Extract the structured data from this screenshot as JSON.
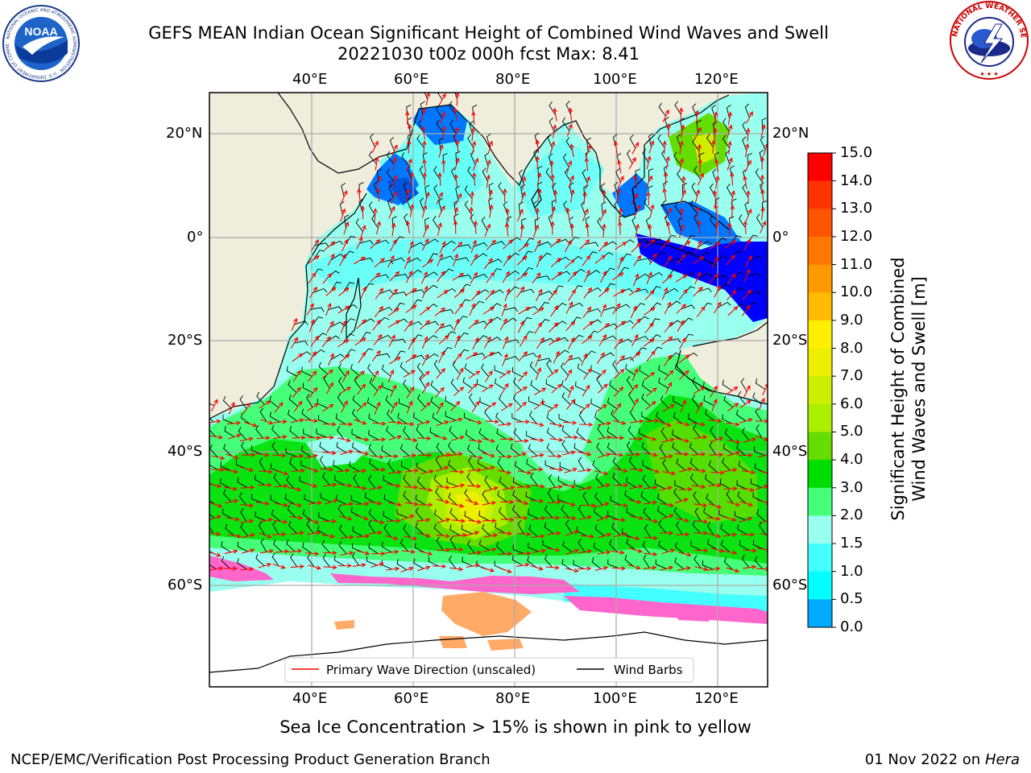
{
  "header": {
    "title_line1": "GEFS MEAN Indian Ocean Significant Height of Combined Wind Waves and Swell",
    "title_line2": "20221030 t00z 000h fcst   Max: 8.41"
  },
  "logos": {
    "noaa_text": "NOAA",
    "noaa_ring_text": "NATIONAL OCEANIC AND ATMOSPHERIC ADMINISTRATION · U.S. DEPARTMENT OF COMMERCE",
    "nws_ring_text": "NATIONAL WEATHER SERVICE"
  },
  "map": {
    "lon_ticks": [
      "40°E",
      "60°E",
      "80°E",
      "100°E",
      "120°E"
    ],
    "lat_ticks": [
      "20°N",
      "0°",
      "20°S",
      "40°S",
      "60°S"
    ],
    "legend": {
      "wave_direction": "Primary Wave Direction (unscaled)",
      "wind_barbs": "Wind Barbs"
    },
    "colors": {
      "land": "#efeedd",
      "ice_pink": "#ff66cc",
      "ice_orange": "#ffaa66",
      "wave_arrow": "#ff0000",
      "barb": "#000000"
    }
  },
  "colorbar": {
    "label_line1": "Significant Height of Combined",
    "label_line2": "Wind Waves and Swell [m]",
    "ticks": [
      "15.0",
      "14.0",
      "13.0",
      "12.0",
      "11.0",
      "10.0",
      "9.0",
      "8.0",
      "7.0",
      "6.0",
      "5.0",
      "4.0",
      "3.0",
      "2.0",
      "1.5",
      "1.0",
      "0.5",
      "0.0"
    ],
    "colors": [
      "#ff0000",
      "#ff3300",
      "#ff5500",
      "#ff7700",
      "#ff9900",
      "#ffbb00",
      "#ffee00",
      "#eeee00",
      "#ccee00",
      "#aaee00",
      "#66dd00",
      "#00dd00",
      "#44ff77",
      "#99ffee",
      "#44ffff",
      "#00ffff",
      "#00aaff",
      "#0077ff",
      "#0000ff"
    ]
  },
  "captions": {
    "sea_ice": "Sea Ice Concentration > 15% is shown in pink to yellow",
    "credit": "NCEP/EMC/Verification Post Processing Product Generation Branch",
    "date": "01 Nov 2022 on",
    "machine": "Hera"
  }
}
